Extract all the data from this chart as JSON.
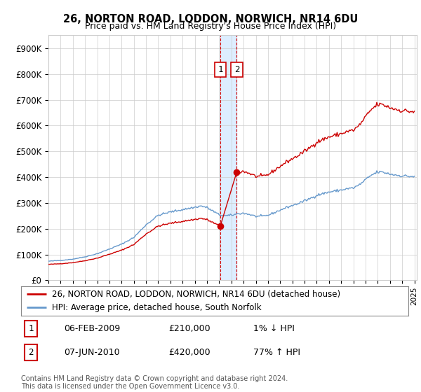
{
  "title": "26, NORTON ROAD, LODDON, NORWICH, NR14 6DU",
  "subtitle": "Price paid vs. HM Land Registry's House Price Index (HPI)",
  "legend_line1": "26, NORTON ROAD, LODDON, NORWICH, NR14 6DU (detached house)",
  "legend_line2": "HPI: Average price, detached house, South Norfolk",
  "footer": "Contains HM Land Registry data © Crown copyright and database right 2024.\nThis data is licensed under the Open Government Licence v3.0.",
  "sale1_date": "06-FEB-2009",
  "sale1_price": "£210,000",
  "sale1_rel": "1% ↓ HPI",
  "sale2_date": "07-JUN-2010",
  "sale2_price": "£420,000",
  "sale2_rel": "77% ↑ HPI",
  "sale1_year": 2009.09,
  "sale2_year": 2010.44,
  "sale1_price_val": 210000,
  "sale2_price_val": 420000,
  "property_color": "#cc0000",
  "hpi_color": "#6699cc",
  "highlight_color": "#ddeeff",
  "vline_color": "#cc0000",
  "ylim_min": 0,
  "ylim_max": 950000,
  "yticks": [
    0,
    100000,
    200000,
    300000,
    400000,
    500000,
    600000,
    700000,
    800000,
    900000
  ],
  "background_color": "#ffffff",
  "grid_color": "#cccccc",
  "box_edge_color": "#cc0000"
}
